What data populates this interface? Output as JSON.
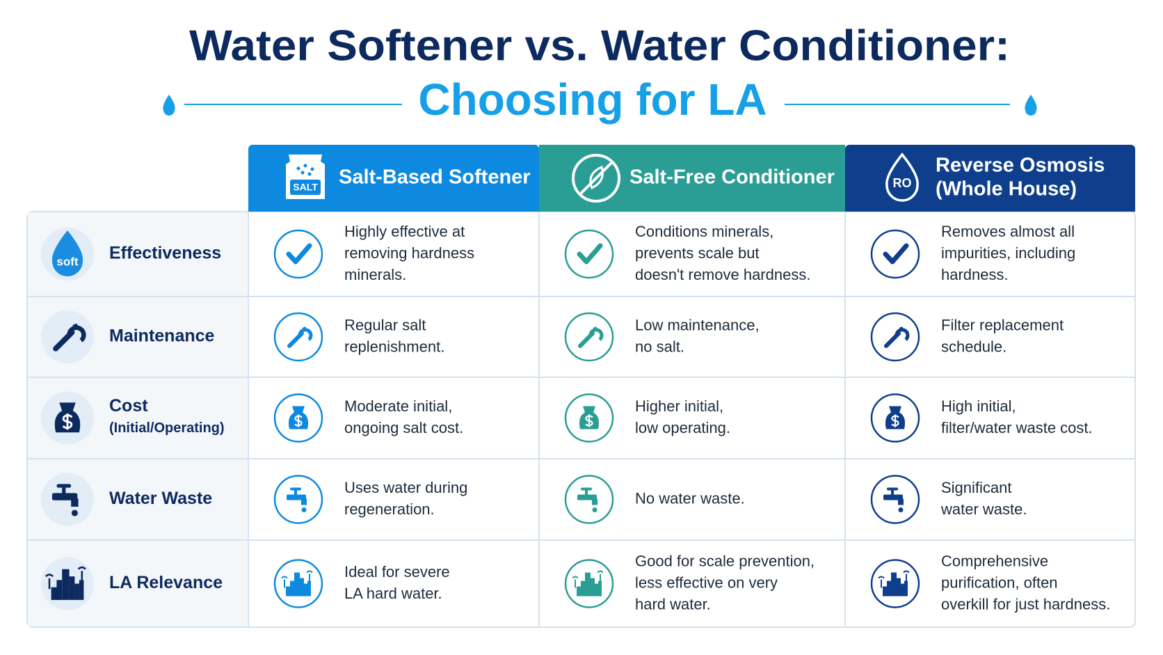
{
  "header": {
    "title": "Water Softener vs. Water Conditioner:",
    "subtitle": "Choosing for LA"
  },
  "table": {
    "columns": [
      {
        "name": [
          "Salt-Based Softener"
        ],
        "icon_text": "SALT"
      },
      {
        "name": [
          "Salt-Free Conditioner"
        ]
      },
      {
        "name": [
          "Reverse Osmosis",
          "(Whole House)"
        ],
        "icon_text": "RO"
      }
    ],
    "rows": [
      {
        "label": "Effectiveness",
        "icon_text": "soft",
        "cells": [
          [
            "Highly effective at",
            "removing hardness",
            "minerals."
          ],
          [
            "Conditions minerals,",
            "prevents scale but",
            "doesn't remove hardness."
          ],
          [
            "Removes almost all",
            "impurities, including",
            "hardness."
          ]
        ]
      },
      {
        "label": "Maintenance",
        "cells": [
          [
            "Regular salt",
            "replenishment."
          ],
          [
            "Low maintenance,",
            "no salt."
          ],
          [
            "Filter replacement",
            "schedule."
          ]
        ]
      },
      {
        "label": "Cost",
        "sublabel": "(Initial/Operating)",
        "cells": [
          [
            "Moderate initial,",
            "ongoing salt cost."
          ],
          [
            "Higher initial,",
            "low operating."
          ],
          [
            "High initial,",
            "filter/water waste cost."
          ]
        ]
      },
      {
        "label": "Water Waste",
        "cells": [
          [
            "Uses water during",
            "regeneration."
          ],
          [
            "No water waste."
          ],
          [
            "Significant",
            "water waste."
          ]
        ]
      },
      {
        "label": "LA Relevance",
        "cells": [
          [
            "Ideal for severe",
            "LA hard water."
          ],
          [
            "Good for scale prevention,",
            "less effective on very",
            "hard water."
          ],
          [
            "Comprehensive",
            "purification, often",
            "overkill for just hardness."
          ]
        ]
      }
    ]
  }
}
